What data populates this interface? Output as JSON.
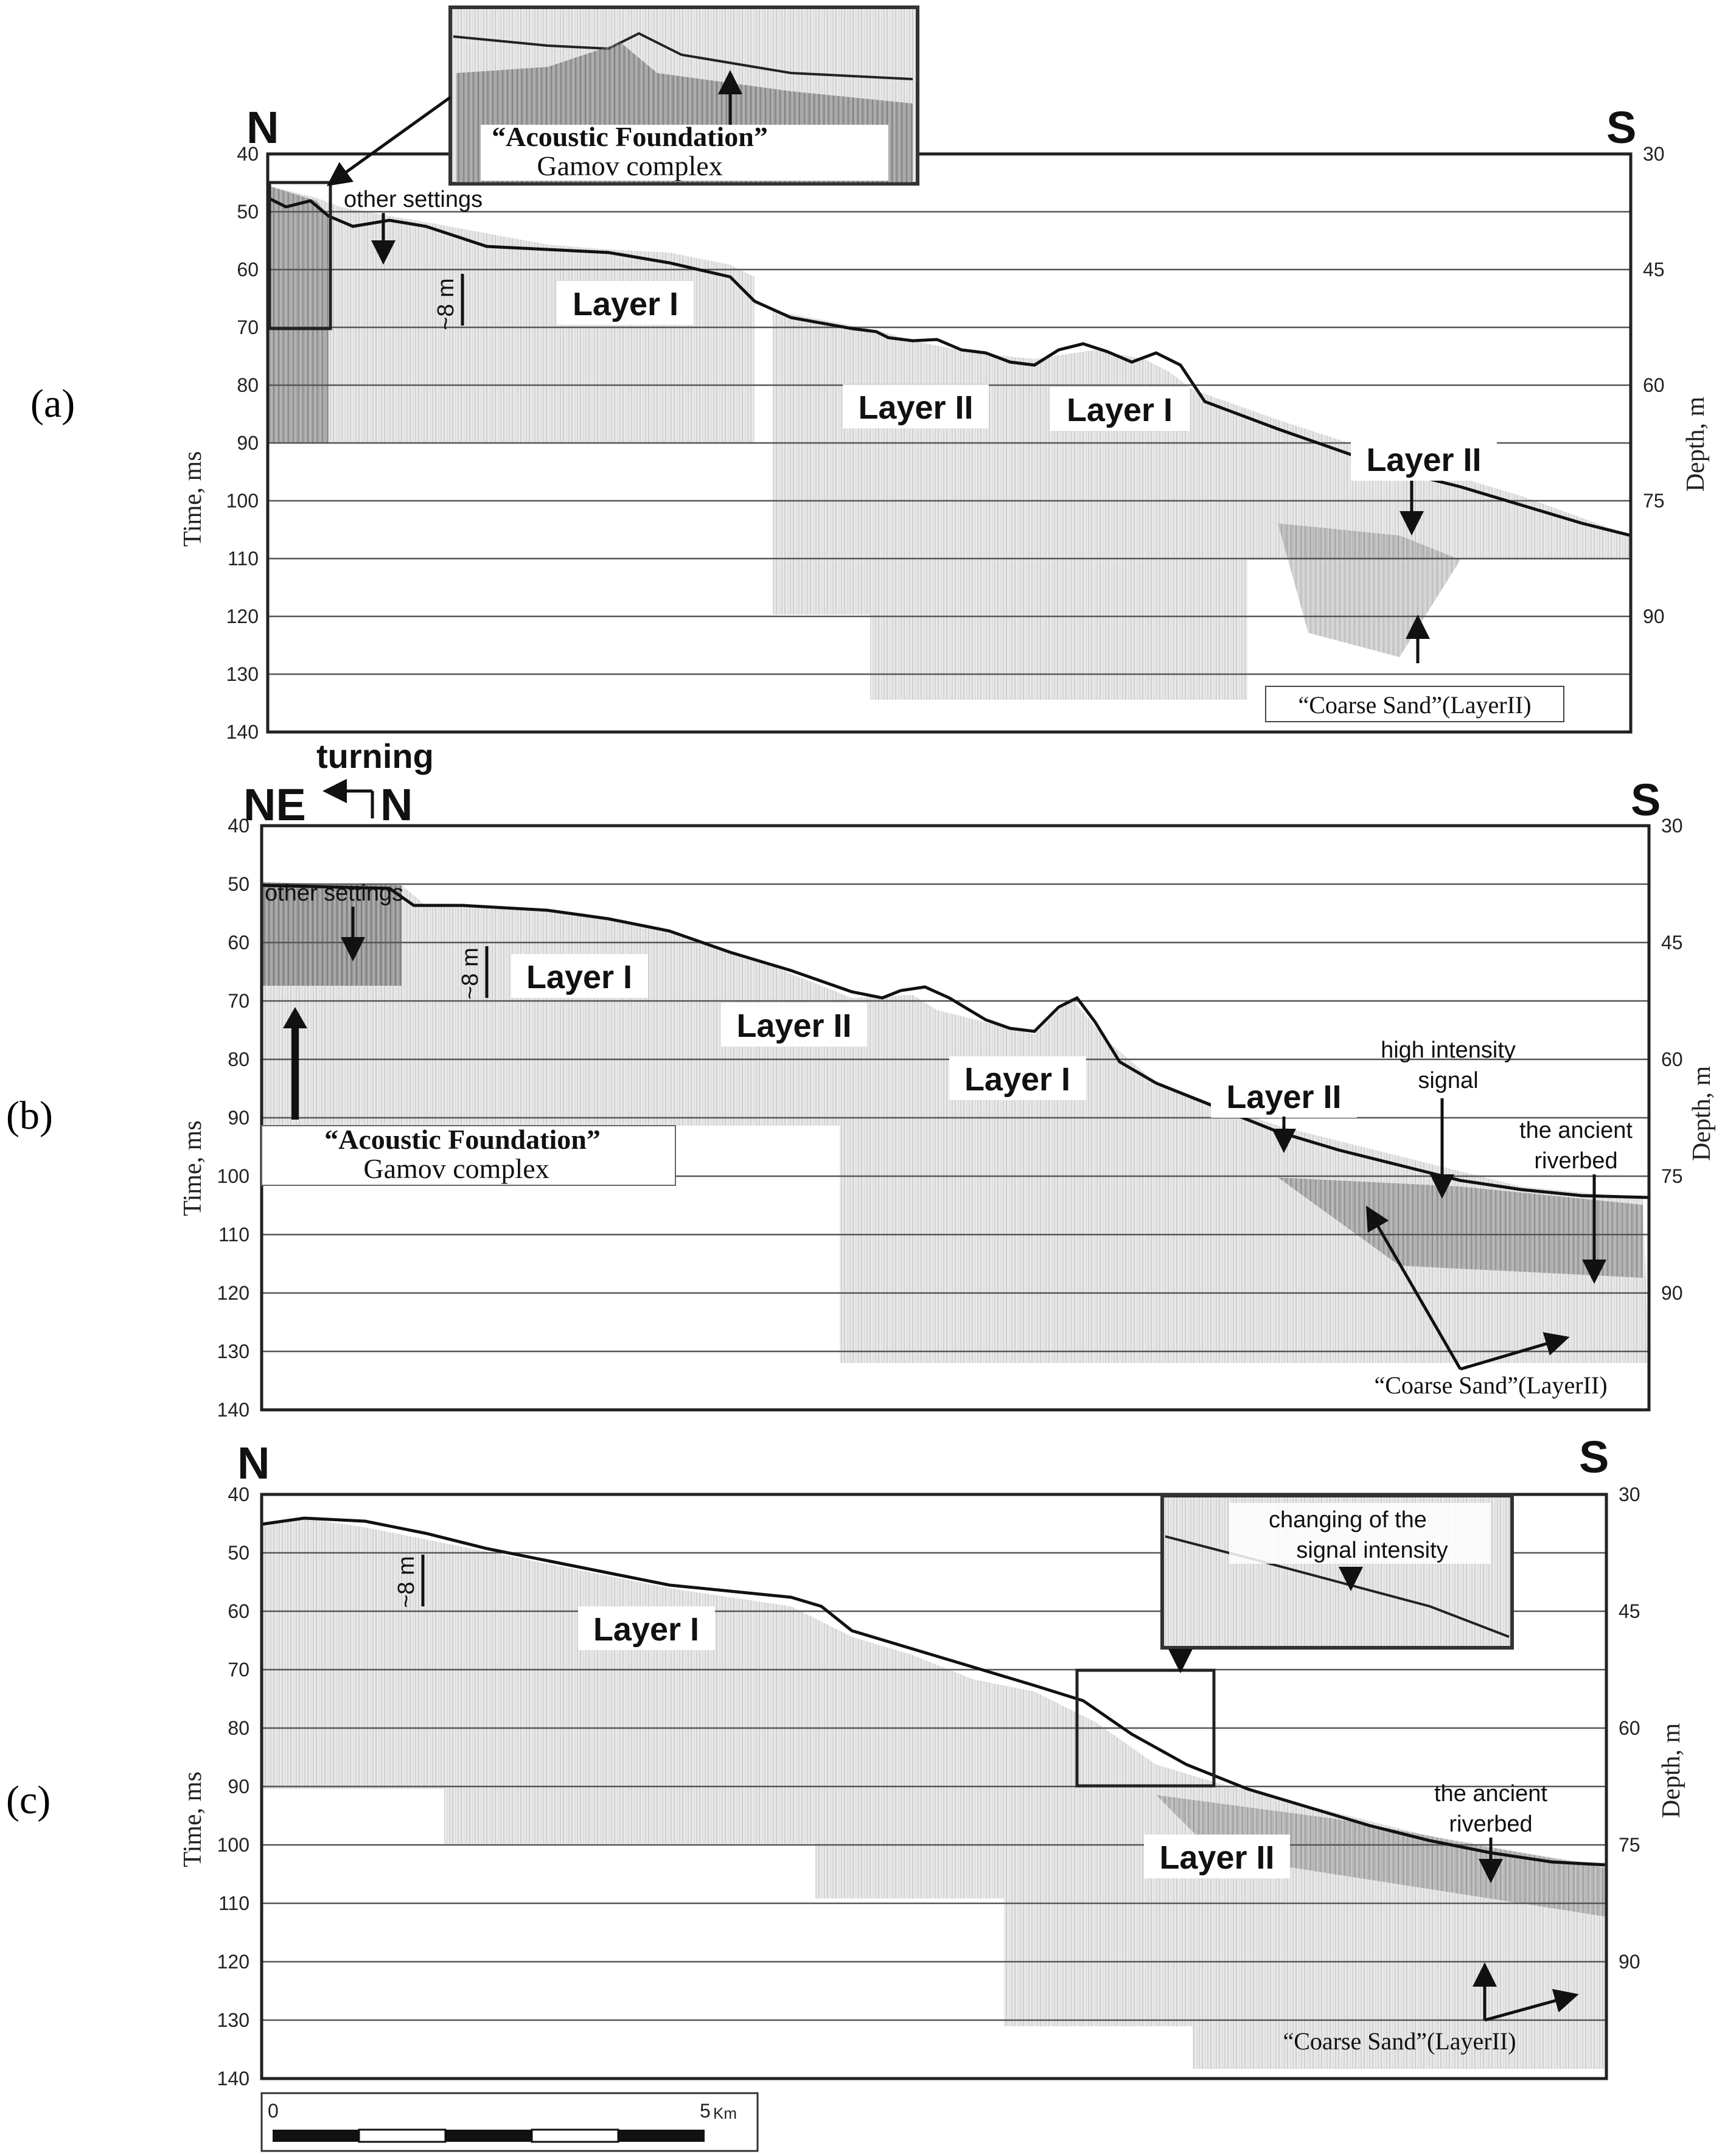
{
  "figure": {
    "scale_bar": {
      "start_label": "0",
      "end_label": "5",
      "unit_label": "Km"
    }
  },
  "panels": [
    {
      "id": "a",
      "letter": "(a)",
      "left_compass": "N",
      "right_compass": "S",
      "left_axis_title": "Time, ms",
      "right_axis_title": "Depth, m",
      "time_ticks": [
        "40",
        "50",
        "60",
        "70",
        "80",
        "90",
        "100",
        "110",
        "120",
        "130",
        "140"
      ],
      "depth_ticks": [
        "30",
        "45",
        "60",
        "75",
        "90"
      ],
      "labels": {
        "other_settings": "other settings",
        "thickness": "~8 m",
        "layer_i_1": "Layer I",
        "layer_ii_1": "Layer II",
        "layer_i_2": "Layer I",
        "layer_ii_2": "Layer II",
        "coarse_sand": "“Coarse Sand”(LayerII)",
        "inset_title": "“Acoustic Foundation”",
        "inset_subtitle": "Gamov complex"
      }
    },
    {
      "id": "b",
      "letter": "(b)",
      "left_compass": "NE",
      "left_compass_2": "N",
      "right_compass": "S",
      "turning_label": "turning",
      "left_axis_title": "Time, ms",
      "right_axis_title": "Depth, m",
      "time_ticks": [
        "40",
        "50",
        "60",
        "70",
        "80",
        "90",
        "100",
        "110",
        "120",
        "130",
        "140"
      ],
      "depth_ticks": [
        "30",
        "45",
        "60",
        "75",
        "90"
      ],
      "labels": {
        "other_settings": "other settings",
        "thickness": "~8 m",
        "layer_i_1": "Layer I",
        "layer_ii_1": "Layer II",
        "layer_i_2": "Layer I",
        "layer_ii_2": "Layer II",
        "high_intensity_1": "high intensity",
        "high_intensity_2": "signal",
        "riverbed_1": "the ancient",
        "riverbed_2": "riverbed",
        "coarse_sand": "“Coarse Sand”(LayerII)",
        "foundation_title": "“Acoustic Foundation”",
        "foundation_subtitle": "Gamov complex"
      }
    },
    {
      "id": "c",
      "letter": "(c)",
      "left_compass": "N",
      "right_compass": "S",
      "left_axis_title": "Time, ms",
      "right_axis_title": "Depth, m",
      "time_ticks": [
        "40",
        "50",
        "60",
        "70",
        "80",
        "90",
        "100",
        "110",
        "120",
        "130",
        "140"
      ],
      "depth_ticks": [
        "30",
        "45",
        "60",
        "75",
        "90"
      ],
      "labels": {
        "thickness": "~8 m",
        "layer_i_1": "Layer I",
        "layer_ii_1": "Layer II",
        "inset_1": "changing of the",
        "inset_2": "signal intensity",
        "riverbed_1": "the ancient",
        "riverbed_2": "riverbed",
        "coarse_sand": "“Coarse Sand”(LayerII)"
      }
    }
  ]
}
